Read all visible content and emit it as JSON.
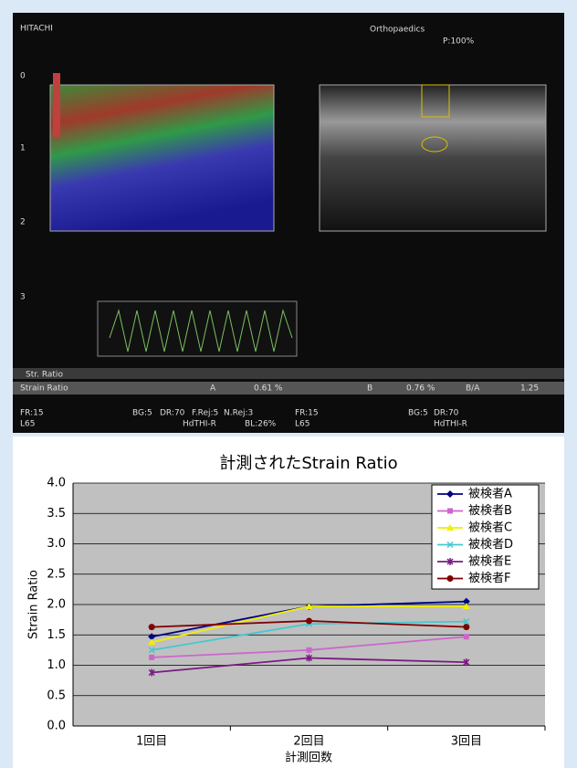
{
  "ultrasound": {
    "labels": [
      "HITACHI",
      "Orthopaedics",
      "P:100%",
      "0",
      "1",
      "2",
      "3",
      "Str. Ratio",
      "Strain Ratio",
      "A",
      "0.61 %",
      "B",
      "0.76 %",
      "B/A",
      "1.25",
      "FR:15",
      "L65",
      "BG:5",
      "DR:70",
      "F.Rej:5",
      "N.Rej:3",
      "HdTHI-R",
      "BL:26%",
      "FR:15",
      "L65",
      "BG:5",
      "DR:70",
      "HdTHI-R"
    ]
  },
  "chart_data": {
    "type": "line",
    "title": "計測されたStrain Ratio",
    "x_label": "計測回数",
    "y_label": "Strain Ratio",
    "categories": [
      "1回目",
      "2回目",
      "3回目"
    ],
    "ylim": [
      0,
      4
    ],
    "yticks": [
      0,
      0.5,
      1,
      1.5,
      2,
      2.5,
      3,
      3.5,
      4
    ],
    "yticks_labels": [
      "0.0",
      "0.5",
      "1.0",
      "1.5",
      "2.0",
      "2.5",
      "3.0",
      "3.5",
      "4.0"
    ],
    "grid": true,
    "legend": "top-right",
    "series": [
      {
        "name": "被検者A",
        "color": "#000080",
        "marker": "diamond",
        "values": [
          1.47,
          1.97,
          2.05
        ]
      },
      {
        "name": "被検者B",
        "color": "#cc66cc",
        "marker": "square",
        "values": [
          1.13,
          1.25,
          1.47
        ]
      },
      {
        "name": "被検者C",
        "color": "#f0f000",
        "marker": "triangle",
        "values": [
          1.38,
          1.97,
          1.97
        ]
      },
      {
        "name": "被検者D",
        "color": "#44c8d0",
        "marker": "x",
        "values": [
          1.25,
          1.68,
          1.72
        ]
      },
      {
        "name": "被検者E",
        "color": "#7a1a80",
        "marker": "star",
        "values": [
          0.88,
          1.12,
          1.05
        ]
      },
      {
        "name": "被検者F",
        "color": "#800000",
        "marker": "circle",
        "values": [
          1.63,
          1.73,
          1.63
        ]
      }
    ]
  }
}
